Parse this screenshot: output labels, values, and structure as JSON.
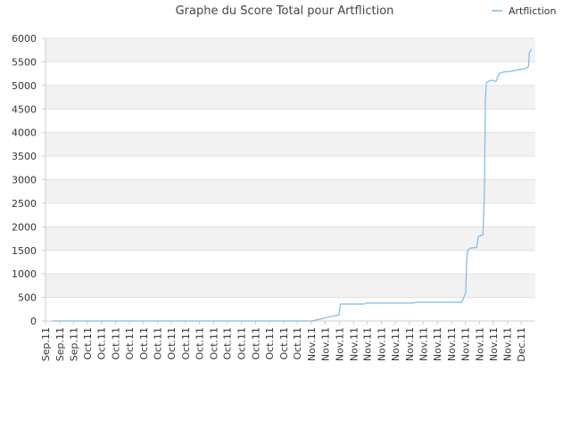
{
  "chart_data": {
    "type": "line",
    "title": "Graphe du Score Total pour Artfliction",
    "xlabel": "",
    "ylabel": "",
    "legend": {
      "position": "top-right",
      "entries": [
        "Artfliction"
      ]
    },
    "grid": true,
    "colors": {
      "line": "#7cb9e8",
      "band": "#f2f2f2",
      "gridline": "#e0e0e0",
      "axis": "#cccccc",
      "title": "#444444"
    },
    "ylim": [
      0,
      6000
    ],
    "y_ticks": [
      0,
      500,
      1000,
      1500,
      2000,
      2500,
      3000,
      3500,
      4000,
      4500,
      5000,
      5500,
      6000
    ],
    "x_range": [
      0,
      100
    ],
    "x_ticks": [
      {
        "x": 0,
        "label": "Sep.11"
      },
      {
        "x": 2.9,
        "label": "Sep.11"
      },
      {
        "x": 5.7,
        "label": "Sep.11"
      },
      {
        "x": 8.6,
        "label": "Oct.11"
      },
      {
        "x": 11.4,
        "label": "Oct.11"
      },
      {
        "x": 14.3,
        "label": "Oct.11"
      },
      {
        "x": 17.1,
        "label": "Oct.11"
      },
      {
        "x": 20.0,
        "label": "Oct.11"
      },
      {
        "x": 22.9,
        "label": "Oct.11"
      },
      {
        "x": 25.7,
        "label": "Oct.11"
      },
      {
        "x": 28.6,
        "label": "Oct.11"
      },
      {
        "x": 31.4,
        "label": "Oct.11"
      },
      {
        "x": 34.3,
        "label": "Oct.11"
      },
      {
        "x": 37.1,
        "label": "Oct.11"
      },
      {
        "x": 40.0,
        "label": "Oct.11"
      },
      {
        "x": 42.9,
        "label": "Oct.11"
      },
      {
        "x": 45.7,
        "label": "Oct.11"
      },
      {
        "x": 48.6,
        "label": "Oct.11"
      },
      {
        "x": 51.4,
        "label": "Oct.11"
      },
      {
        "x": 54.3,
        "label": "Nov.11"
      },
      {
        "x": 57.1,
        "label": "Nov.11"
      },
      {
        "x": 60.0,
        "label": "Nov.11"
      },
      {
        "x": 62.9,
        "label": "Nov.11"
      },
      {
        "x": 65.7,
        "label": "Nov.11"
      },
      {
        "x": 68.6,
        "label": "Nov.11"
      },
      {
        "x": 71.4,
        "label": "Nov.11"
      },
      {
        "x": 74.3,
        "label": "Nov.11"
      },
      {
        "x": 77.1,
        "label": "Nov.11"
      },
      {
        "x": 80.0,
        "label": "Nov.11"
      },
      {
        "x": 82.9,
        "label": "Nov.11"
      },
      {
        "x": 85.7,
        "label": "Nov.11"
      },
      {
        "x": 88.6,
        "label": "Nov.11"
      },
      {
        "x": 91.4,
        "label": "Nov.11"
      },
      {
        "x": 94.3,
        "label": "Nov.11"
      },
      {
        "x": 97.1,
        "label": "Dec.11"
      }
    ],
    "series": [
      {
        "name": "Artfliction",
        "x": [
          1.4,
          54.5,
          55.5,
          56.5,
          57.5,
          58.5,
          59.5,
          59.9,
          60.2,
          65.0,
          65.5,
          70.0,
          75.0,
          75.8,
          80.0,
          85.0,
          85.8,
          86.0,
          86.2,
          86.5,
          86.8,
          88.0,
          88.4,
          89.3,
          89.6,
          89.8,
          90.0,
          90.2,
          90.5,
          91.0,
          91.5,
          92.0,
          92.6,
          93.0,
          93.3,
          94.0,
          95.0,
          96.0,
          97.0,
          98.0,
          98.6,
          98.8,
          99.2
        ],
        "y": [
          0,
          0,
          30,
          50,
          80,
          100,
          120,
          130,
          360,
          360,
          380,
          380,
          380,
          400,
          400,
          400,
          600,
          1300,
          1500,
          1530,
          1550,
          1560,
          1800,
          1830,
          2700,
          4650,
          5050,
          5070,
          5090,
          5110,
          5100,
          5090,
          5250,
          5270,
          5280,
          5290,
          5300,
          5320,
          5340,
          5360,
          5400,
          5700,
          5770
        ]
      }
    ]
  }
}
